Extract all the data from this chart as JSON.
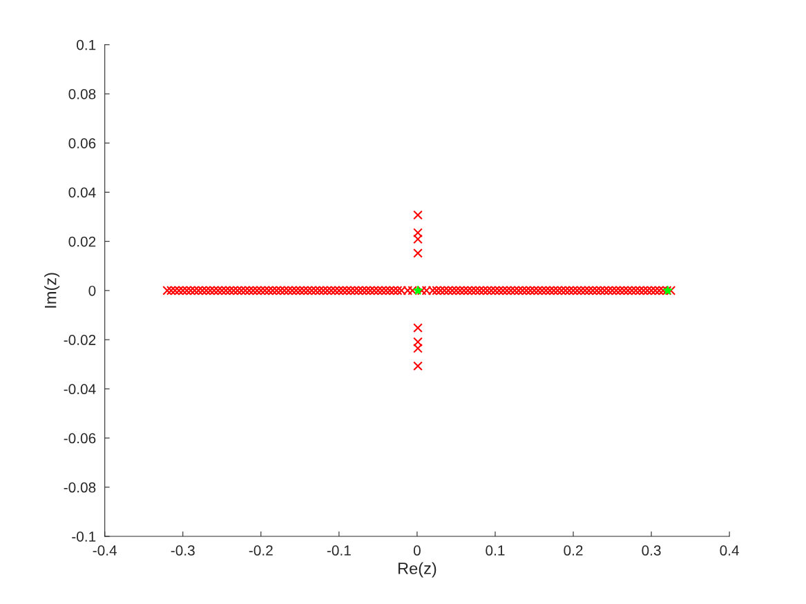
{
  "chart_data": {
    "type": "scatter",
    "xlabel": "Re(z)",
    "ylabel": "Im(z)",
    "xlim": [
      -0.4,
      0.4
    ],
    "ylim": [
      -0.1,
      0.1
    ],
    "xticks": [
      -0.4,
      -0.3,
      -0.2,
      -0.1,
      0,
      0.1,
      0.2,
      0.3,
      0.4
    ],
    "yticks": [
      -0.1,
      -0.08,
      -0.06,
      -0.04,
      -0.02,
      0,
      0.02,
      0.04,
      0.06,
      0.08,
      0.1
    ],
    "grid": false,
    "series": [
      {
        "color": "#ff0000",
        "marker": "cross",
        "x": [
          -0.32,
          -0.315,
          -0.31,
          -0.305,
          -0.3,
          -0.295,
          -0.29,
          -0.285,
          -0.28,
          -0.275,
          -0.27,
          -0.265,
          -0.26,
          -0.255,
          -0.25,
          -0.245,
          -0.24,
          -0.235,
          -0.23,
          -0.225,
          -0.22,
          -0.215,
          -0.21,
          -0.205,
          -0.2,
          -0.195,
          -0.19,
          -0.185,
          -0.18,
          -0.175,
          -0.17,
          -0.165,
          -0.16,
          -0.155,
          -0.15,
          -0.145,
          -0.14,
          -0.135,
          -0.13,
          -0.125,
          -0.12,
          -0.115,
          -0.11,
          -0.105,
          -0.1,
          -0.095,
          -0.09,
          -0.085,
          -0.08,
          -0.075,
          -0.07,
          -0.065,
          -0.06,
          -0.055,
          -0.05,
          -0.045,
          -0.04,
          -0.035,
          -0.03,
          -0.025,
          -0.02,
          -0.012,
          -0.006,
          0.006,
          0.012,
          0.02,
          0.025,
          0.03,
          0.035,
          0.04,
          0.045,
          0.05,
          0.055,
          0.06,
          0.065,
          0.07,
          0.075,
          0.08,
          0.085,
          0.09,
          0.095,
          0.1,
          0.105,
          0.11,
          0.115,
          0.12,
          0.125,
          0.13,
          0.135,
          0.14,
          0.145,
          0.15,
          0.155,
          0.16,
          0.165,
          0.17,
          0.175,
          0.18,
          0.185,
          0.19,
          0.195,
          0.2,
          0.205,
          0.21,
          0.215,
          0.22,
          0.225,
          0.23,
          0.235,
          0.24,
          0.245,
          0.25,
          0.255,
          0.26,
          0.265,
          0.27,
          0.275,
          0.28,
          0.285,
          0.29,
          0.295,
          0.3,
          0.305,
          0.31,
          0.315,
          0.32,
          0.325,
          0.001,
          0.001,
          0.001,
          0.001,
          0.001,
          0.001,
          0.001,
          0.001
        ],
        "values": [
          0,
          0,
          0,
          0,
          0,
          0,
          0,
          0,
          0,
          0,
          0,
          0,
          0,
          0,
          0,
          0,
          0,
          0,
          0,
          0,
          0,
          0,
          0,
          0,
          0,
          0,
          0,
          0,
          0,
          0,
          0,
          0,
          0,
          0,
          0,
          0,
          0,
          0,
          0,
          0,
          0,
          0,
          0,
          0,
          0,
          0,
          0,
          0,
          0,
          0,
          0,
          0,
          0,
          0,
          0,
          0,
          0,
          0,
          0,
          0,
          0,
          0,
          0,
          0,
          0,
          0,
          0,
          0,
          0,
          0,
          0,
          0,
          0,
          0,
          0,
          0,
          0,
          0,
          0,
          0,
          0,
          0,
          0,
          0,
          0,
          0,
          0,
          0,
          0,
          0,
          0,
          0,
          0,
          0,
          0,
          0,
          0,
          0,
          0,
          0,
          0,
          0,
          0,
          0,
          0,
          0,
          0,
          0,
          0,
          0,
          0,
          0,
          0,
          0,
          0,
          0,
          0,
          0,
          0,
          0,
          0,
          0,
          0,
          0,
          0,
          0,
          0,
          0.0307,
          0.0235,
          0.0209,
          0.0152,
          -0.0152,
          -0.0209,
          -0.0235,
          -0.0307
        ]
      },
      {
        "color": "#00ff00",
        "marker": "star",
        "x": [
          0.001,
          0.321
        ],
        "values": [
          0,
          0
        ]
      }
    ]
  }
}
